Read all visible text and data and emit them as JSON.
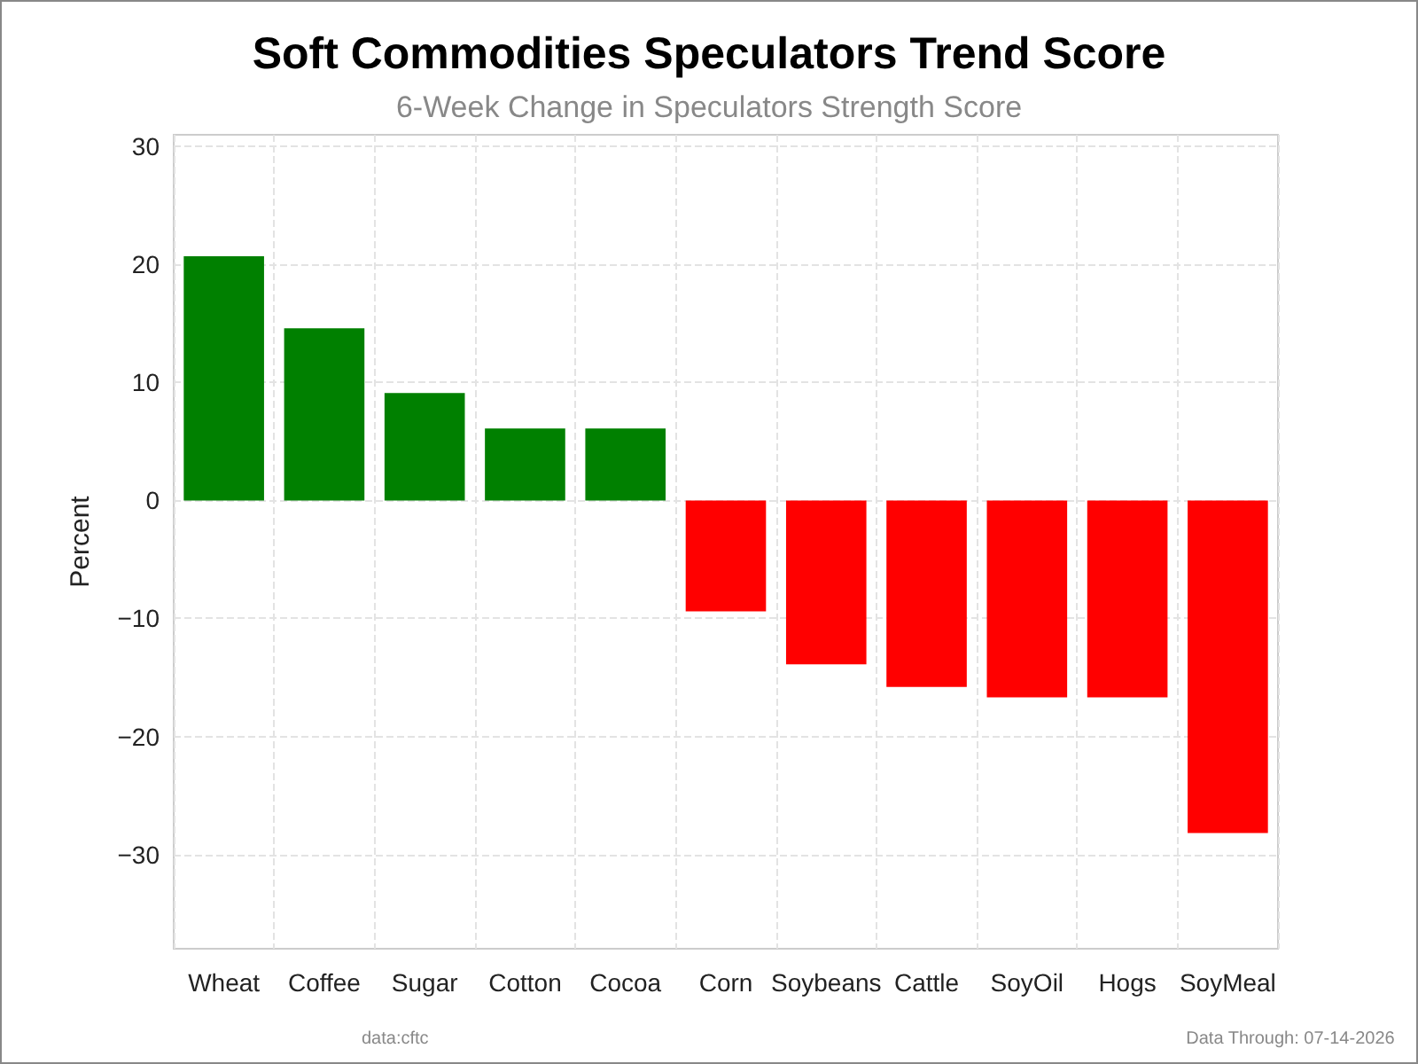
{
  "chart_data": {
    "type": "bar",
    "title": "Soft Commodities Speculators Trend Score",
    "subtitle": "6-Week Change in Speculators Strength Score",
    "ylabel": "Percent",
    "categories": [
      "Wheat",
      "Coffee",
      "Sugar",
      "Cotton",
      "Cocoa",
      "Corn",
      "Soybeans",
      "Cattle",
      "SoyOil",
      "Hogs",
      "SoyMeal"
    ],
    "values": [
      20.7,
      14.6,
      9.1,
      6.1,
      6.1,
      -9.4,
      -13.9,
      -15.8,
      -16.7,
      -16.7,
      -28.2
    ],
    "colors": [
      "#008000",
      "#008000",
      "#008000",
      "#008000",
      "#008000",
      "#ff0000",
      "#ff0000",
      "#ff0000",
      "#ff0000",
      "#ff0000",
      "#ff0000"
    ],
    "ylim": [
      -38,
      31
    ],
    "yticks": [
      -30,
      -20,
      -10,
      0,
      10,
      20,
      30
    ],
    "grid": true,
    "annotations": [
      "data:cftc",
      "Data Through: 07-14-2026"
    ]
  }
}
